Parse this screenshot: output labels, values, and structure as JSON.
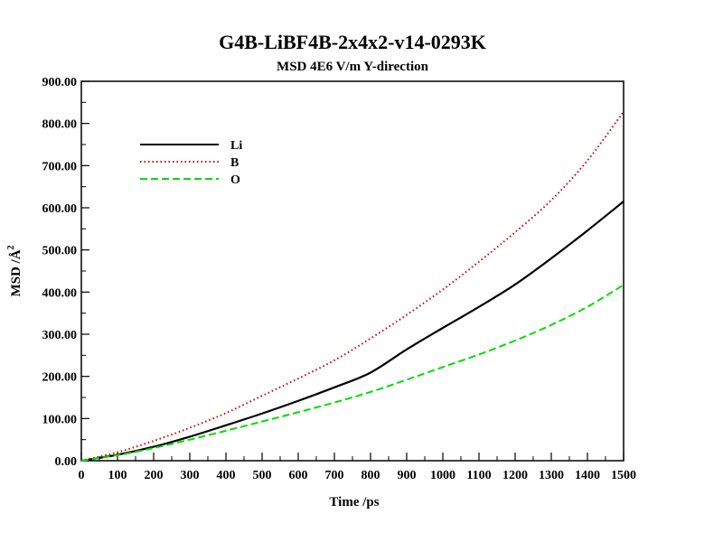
{
  "chart_data": {
    "type": "line",
    "title": "G4B-LiBF4B-2x4x2-v14-0293K",
    "subtitle": "MSD  4E6 V/m Y-direction",
    "xlabel": "Time /ps",
    "ylabel": "MSD /Å",
    "ylabel_sup": "2",
    "xlim": [
      0,
      1500
    ],
    "ylim": [
      0,
      900
    ],
    "xticks": [
      "0",
      "100",
      "200",
      "300",
      "400",
      "500",
      "600",
      "700",
      "800",
      "900",
      "1000",
      "1100",
      "1200",
      "1300",
      "1400",
      "1500"
    ],
    "yticks": [
      "0.00",
      "100.00",
      "200.00",
      "300.00",
      "400.00",
      "500.00",
      "600.00",
      "700.00",
      "800.00",
      "900.00"
    ],
    "grid": false,
    "legend_position": "top-left",
    "x": [
      0,
      100,
      200,
      300,
      400,
      500,
      600,
      700,
      800,
      900,
      1000,
      1100,
      1200,
      1300,
      1400,
      1500
    ],
    "series": [
      {
        "name": "Li",
        "color": "#000000",
        "dash": "solid",
        "values": [
          0,
          14,
          33,
          57,
          84,
          112,
          142,
          174,
          209,
          264,
          315,
          365,
          418,
          480,
          546,
          615
        ]
      },
      {
        "name": "B",
        "color": "#cc0000",
        "dash": "dotted",
        "values": [
          0,
          20,
          47,
          78,
          113,
          154,
          195,
          238,
          290,
          346,
          406,
          472,
          542,
          618,
          712,
          828
        ]
      },
      {
        "name": "O",
        "color": "#00dd00",
        "dash": "dashed",
        "values": [
          0,
          13,
          30,
          50,
          71,
          93,
          115,
          138,
          163,
          192,
          222,
          252,
          285,
          322,
          365,
          417
        ]
      }
    ]
  }
}
